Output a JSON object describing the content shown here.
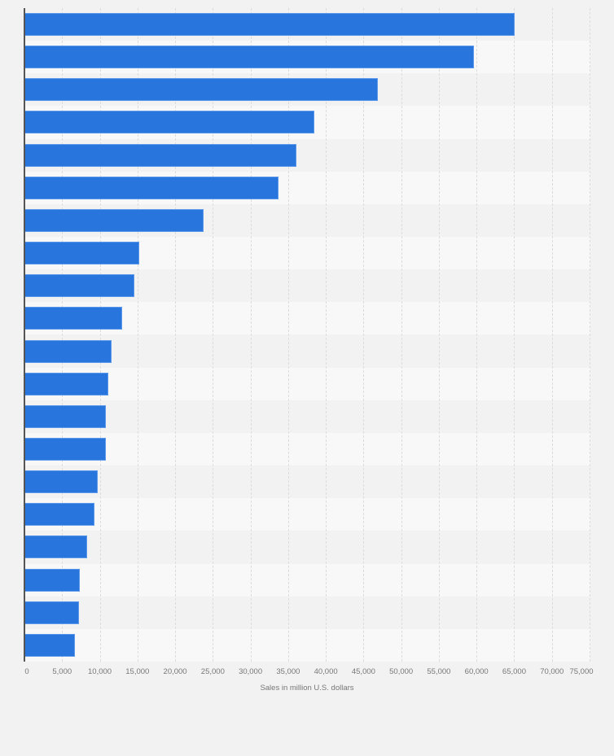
{
  "chart_data": {
    "type": "bar",
    "orientation": "horizontal",
    "title": "",
    "xlabel": "Sales in million U.S. dollars",
    "ylabel": "",
    "xlim": [
      0,
      75000
    ],
    "x_ticks": [
      "0",
      "5,000",
      "10,000",
      "15,000",
      "20,000",
      "25,000",
      "30,000",
      "35,000",
      "40,000",
      "45,000",
      "50,000",
      "55,000",
      "60,000",
      "65,000",
      "70,000",
      "75,000"
    ],
    "categories": [
      "",
      "",
      "",
      "",
      "",
      "",
      "",
      "",
      "",
      "",
      "",
      "",
      "",
      "",
      "",
      "",
      "",
      "",
      "",
      ""
    ],
    "values": [
      65100,
      59700,
      46900,
      38500,
      36100,
      33700,
      23800,
      15200,
      14600,
      13000,
      11600,
      11100,
      10800,
      10800,
      9700,
      9300,
      8300,
      7300,
      7200,
      6700
    ],
    "bar_color": "#2876dd",
    "grid": true,
    "legend": null
  },
  "axis": {
    "x_label": "Sales in million U.S. dollars"
  }
}
